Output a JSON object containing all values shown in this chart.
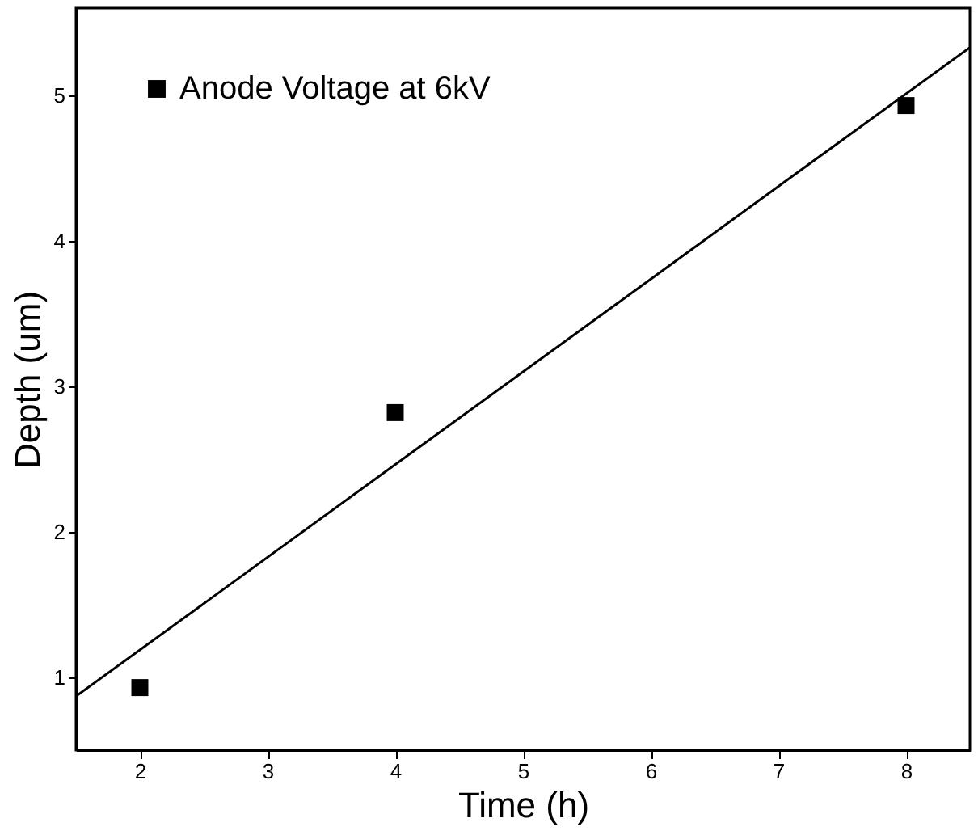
{
  "chart_data": {
    "type": "scatter",
    "xlabel": "Time (h)",
    "ylabel": "Depth (um)",
    "xlim": [
      1.5,
      8.5
    ],
    "ylim": [
      0.5,
      5.6
    ],
    "xticks": [
      2,
      3,
      4,
      5,
      6,
      7,
      8
    ],
    "yticks": [
      1,
      2,
      3,
      4,
      5
    ],
    "grid": false,
    "legend": "top left",
    "marker": "square",
    "series": [
      {
        "name": "Anode Voltage at 6kV",
        "color": "#000000",
        "x": [
          2,
          4,
          8
        ],
        "values": [
          0.93,
          2.82,
          4.93
        ]
      },
      {
        "type": "line",
        "color": "#000000",
        "line_style": "solid",
        "marker": "none",
        "x": [
          1.5,
          8.5
        ],
        "values": [
          0.87,
          5.33
        ]
      }
    ]
  }
}
